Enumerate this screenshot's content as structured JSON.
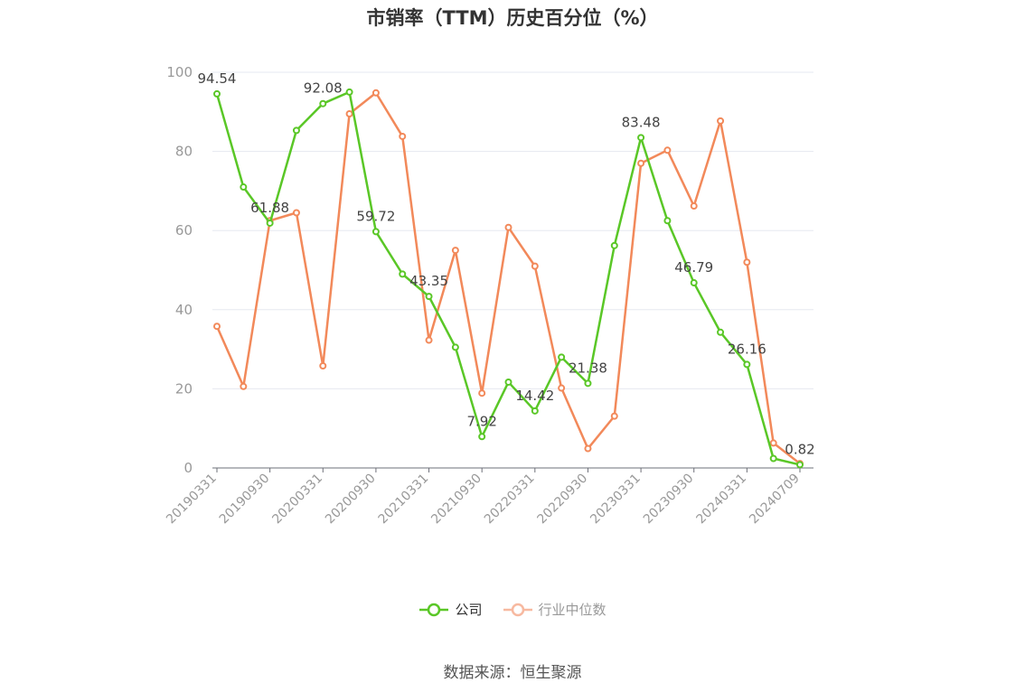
{
  "title": "市销率（TTM）历史百分位（%）",
  "source": "数据来源：恒生聚源",
  "chart_data": {
    "type": "line",
    "title": "市销率（TTM）历史百分位（%）",
    "x_ticks": [
      "20190331",
      "20190930",
      "20200331",
      "20200930",
      "20210331",
      "20210930",
      "20220331",
      "20220930",
      "20230331",
      "20230930",
      "20240331",
      "20240709"
    ],
    "y_ticks": [
      "0",
      "20",
      "40",
      "60",
      "80",
      "100"
    ],
    "ylim": [
      0,
      100
    ],
    "grid": true,
    "legend_position": "bottom",
    "series": [
      {
        "name": "公司",
        "color": "#5ac727",
        "values": [
          94.54,
          71.0,
          61.88,
          85.3,
          92.08,
          95.0,
          59.72,
          49.0,
          43.35,
          30.5,
          7.92,
          21.7,
          14.42,
          28.0,
          21.38,
          56.2,
          83.48,
          62.5,
          46.79,
          34.3,
          26.16,
          2.4,
          0.82
        ],
        "labels": {
          "0": "94.54",
          "2": "61.88",
          "4": "92.08",
          "6": "59.72",
          "8": "43.35",
          "10": "7.92",
          "12": "14.42",
          "14": "21.38",
          "16": "83.48",
          "18": "46.79",
          "20": "26.16",
          "22": "0.82"
        }
      },
      {
        "name": "行业中位数",
        "color": "#f2895a",
        "values": [
          35.8,
          20.6,
          62.5,
          64.5,
          25.8,
          89.5,
          94.8,
          83.8,
          32.3,
          55.0,
          18.9,
          60.8,
          51.0,
          20.2,
          4.9,
          13.1,
          77.0,
          80.3,
          66.2,
          87.7,
          52.0,
          6.3,
          1.1
        ]
      }
    ]
  }
}
